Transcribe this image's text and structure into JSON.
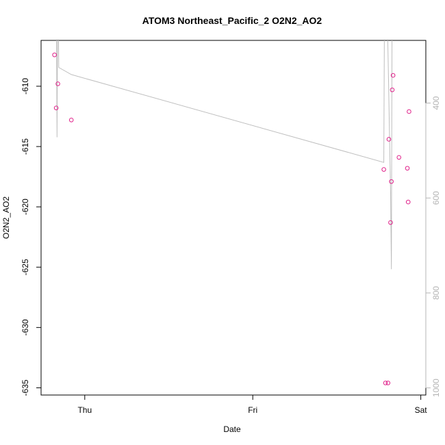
{
  "chart_data": {
    "type": "scatter",
    "title": "ATOM3 Northeast_Pacific_2 O2N2_AO2",
    "xlabel": "Date",
    "ylabel": "O2N2_AO2",
    "xlim": [
      -0.26,
      2.03
    ],
    "ylim": [
      -635.6,
      -606.2
    ],
    "x_ticks": [
      {
        "value": 0,
        "label": "Thu"
      },
      {
        "value": 1,
        "label": "Fri"
      },
      {
        "value": 2,
        "label": "Sat"
      }
    ],
    "y_ticks": [
      -635,
      -630,
      -625,
      -620,
      -615,
      -610
    ],
    "y2_ticks": [
      400,
      600,
      800,
      1000
    ],
    "y2lim": [
      268,
      1015
    ],
    "grid": false,
    "colors": {
      "points": "#e0218a",
      "line": "#bebebe",
      "right_axis": "#b4b4b4"
    },
    "points": [
      {
        "x": -0.18,
        "y": -607.4
      },
      {
        "x": -0.17,
        "y": -611.8
      },
      {
        "x": -0.16,
        "y": -609.8
      },
      {
        "x": -0.08,
        "y": -612.8
      },
      {
        "x": 1.78,
        "y": -616.9
      },
      {
        "x": 1.79,
        "y": -634.6
      },
      {
        "x": 1.805,
        "y": -634.6
      },
      {
        "x": 1.81,
        "y": -614.4
      },
      {
        "x": 1.82,
        "y": -621.3
      },
      {
        "x": 1.825,
        "y": -617.9
      },
      {
        "x": 1.83,
        "y": -610.3
      },
      {
        "x": 1.835,
        "y": -609.1
      },
      {
        "x": 1.87,
        "y": -615.9
      },
      {
        "x": 1.92,
        "y": -616.8
      },
      {
        "x": 1.925,
        "y": -619.6
      },
      {
        "x": 1.93,
        "y": -612.1
      }
    ],
    "line_series": [
      {
        "x": -0.17,
        "y2": 100
      },
      {
        "x": -0.165,
        "y2": 472
      },
      {
        "x": -0.16,
        "y2": 100
      },
      {
        "x": -0.155,
        "y2": 325
      },
      {
        "x": -0.08,
        "y2": 340
      },
      {
        "x": 1.78,
        "y2": 525
      },
      {
        "x": 1.785,
        "y2": 100
      },
      {
        "x": 1.795,
        "y2": 100
      },
      {
        "x": 1.82,
        "y2": 590
      },
      {
        "x": 1.825,
        "y2": 750
      },
      {
        "x": 1.83,
        "y2": 100
      }
    ]
  }
}
